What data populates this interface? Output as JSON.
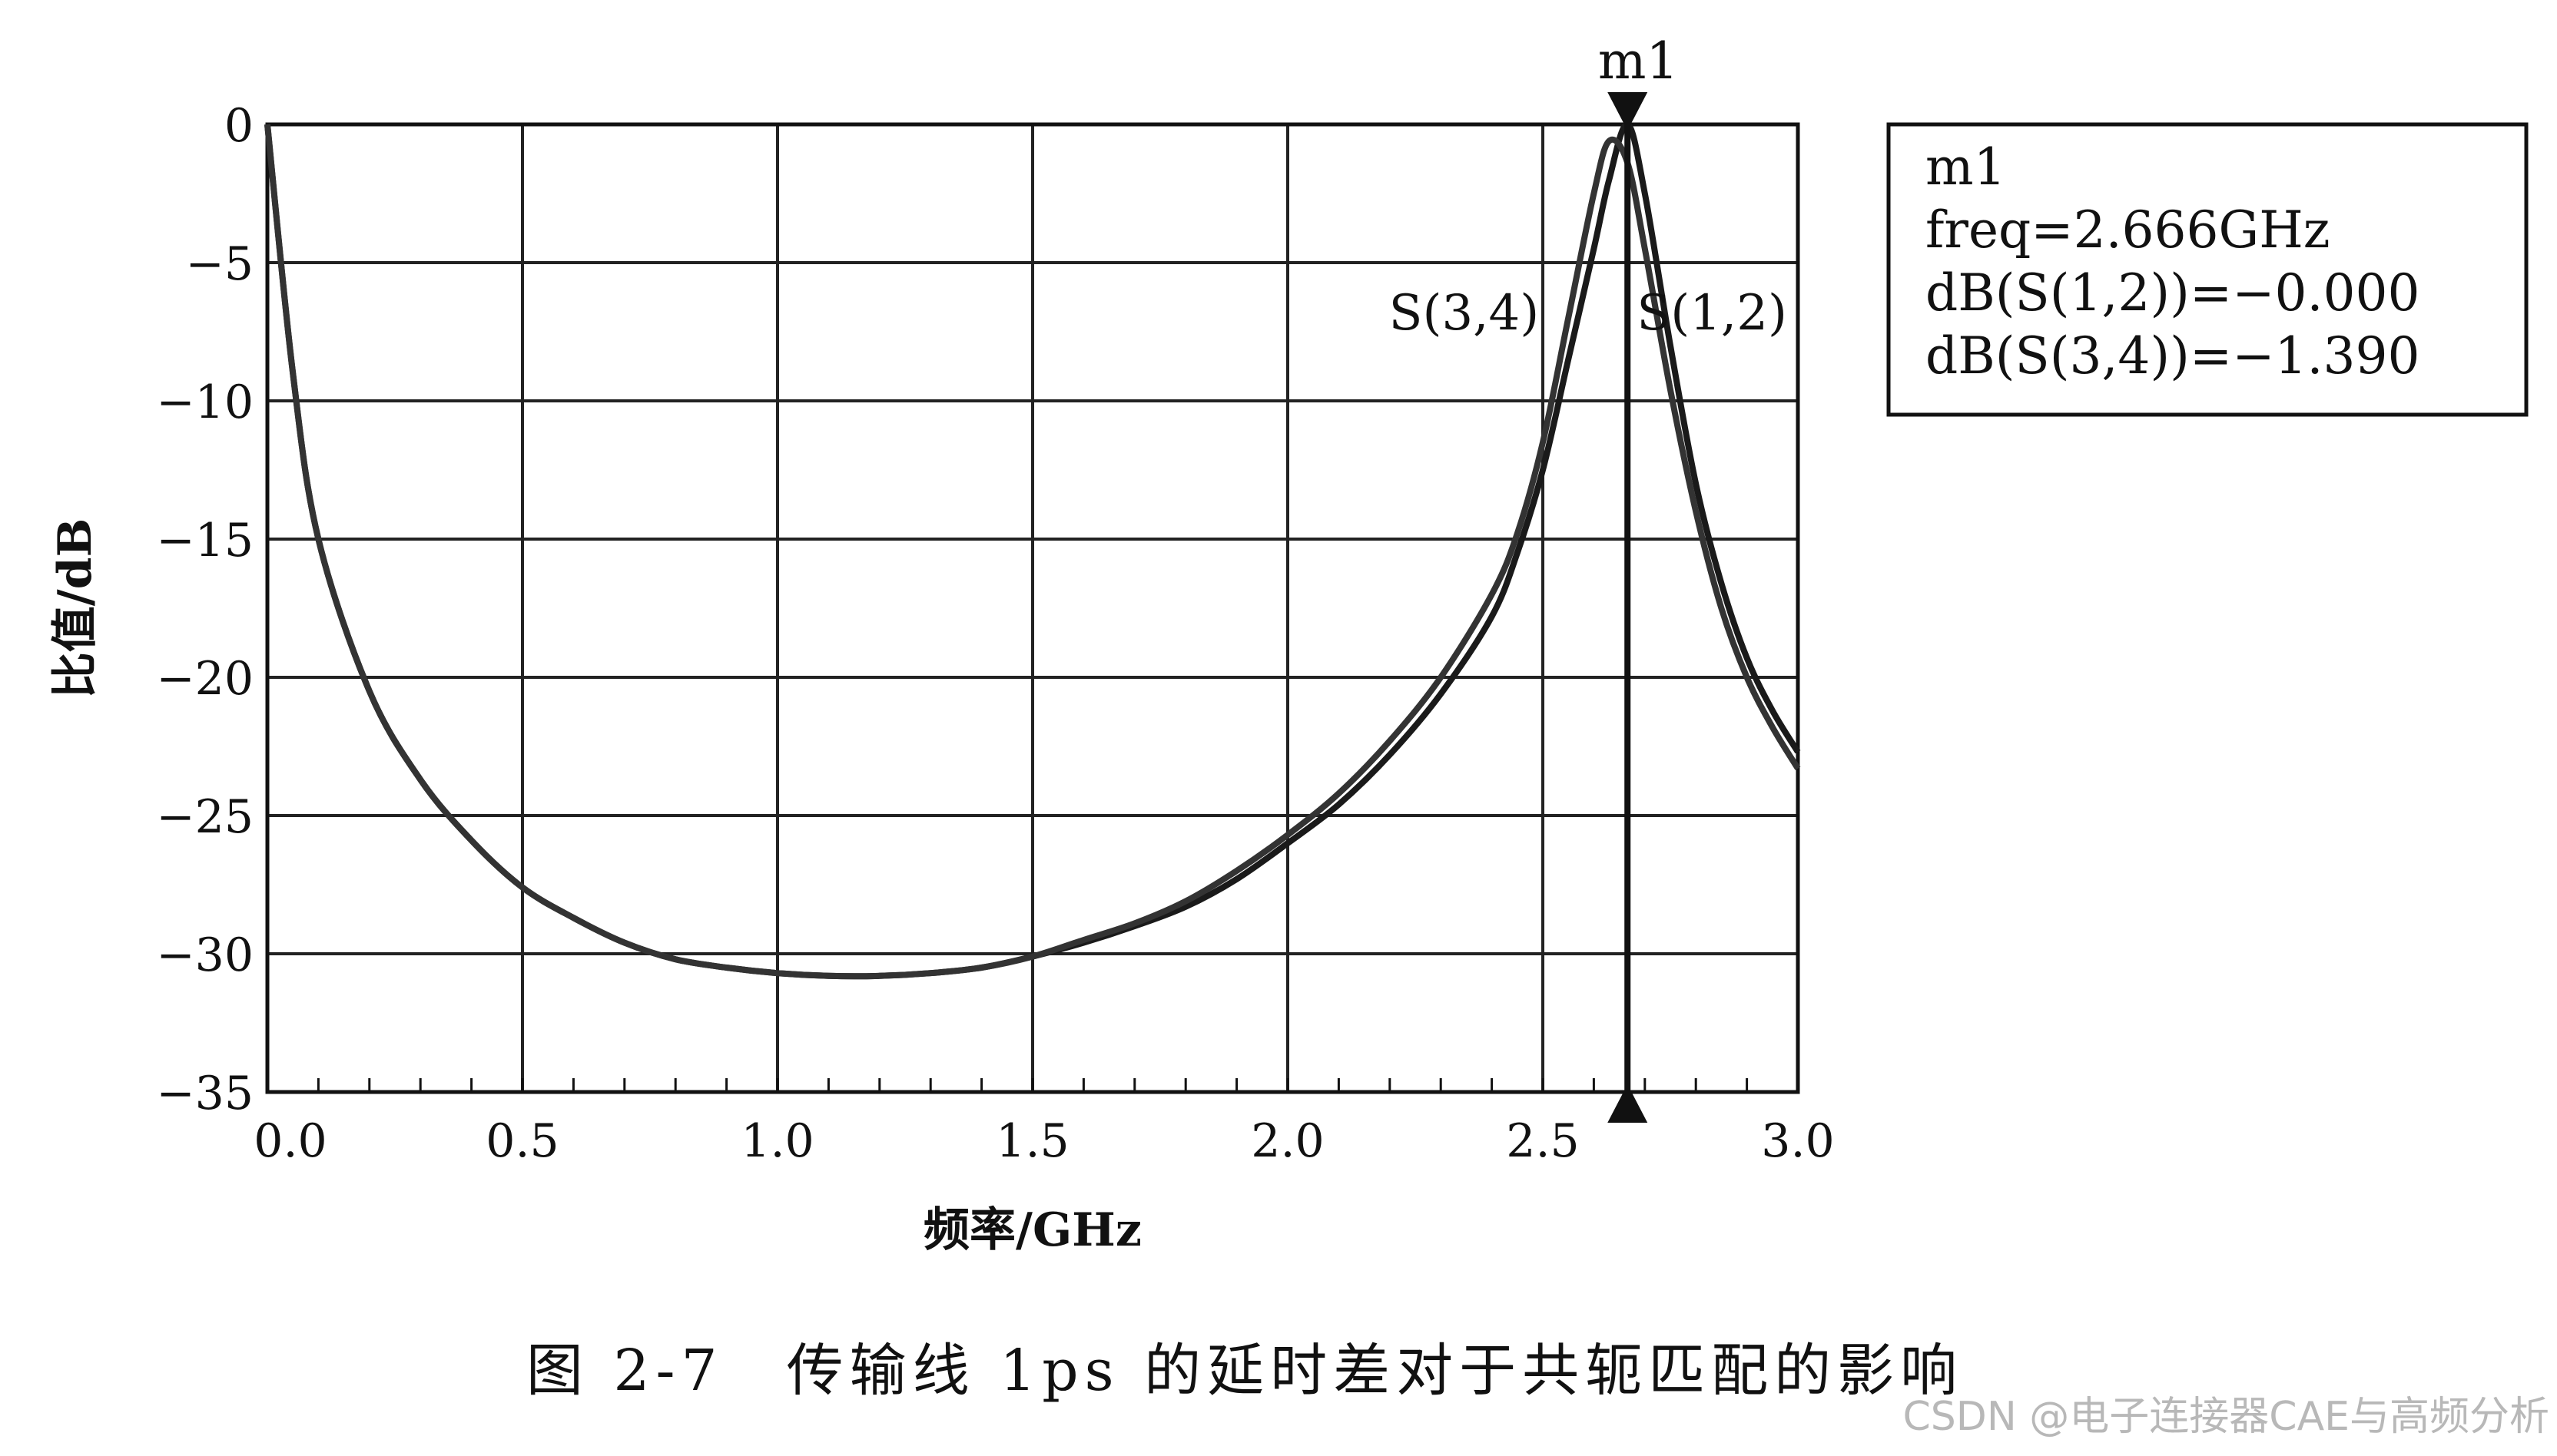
{
  "chart_data": {
    "type": "line",
    "xlabel": "频率/GHz",
    "ylabel": "比值/dB",
    "xlim": [
      0.0,
      3.0
    ],
    "ylim": [
      -35,
      0
    ],
    "xticks": [
      "0.0",
      "0.5",
      "1.0",
      "1.5",
      "2.0",
      "2.5",
      "3.0"
    ],
    "yticks": [
      "0",
      "−5",
      "−10",
      "−15",
      "−20",
      "−25",
      "−30",
      "−35"
    ],
    "grid": true,
    "series": [
      {
        "name": "S(1,2)",
        "x": [
          0.0,
          0.05,
          0.1,
          0.2,
          0.3,
          0.4,
          0.5,
          0.6,
          0.7,
          0.8,
          0.9,
          1.0,
          1.1,
          1.2,
          1.3,
          1.4,
          1.5,
          1.6,
          1.7,
          1.8,
          1.9,
          2.0,
          2.1,
          2.2,
          2.3,
          2.4,
          2.45,
          2.5,
          2.55,
          2.6,
          2.63,
          2.666,
          2.7,
          2.75,
          2.8,
          2.85,
          2.9,
          2.95,
          3.0
        ],
        "y": [
          0,
          -9,
          -15,
          -20.5,
          -23.7,
          -25.9,
          -27.6,
          -28.7,
          -29.6,
          -30.2,
          -30.5,
          -30.7,
          -30.8,
          -30.8,
          -30.7,
          -30.5,
          -30.1,
          -29.6,
          -29.0,
          -28.3,
          -27.3,
          -26.0,
          -24.6,
          -22.8,
          -20.6,
          -17.8,
          -15.5,
          -12.5,
          -8.5,
          -4.5,
          -2.0,
          0,
          -2.5,
          -8.0,
          -13.0,
          -16.6,
          -19.3,
          -21.2,
          -22.7
        ]
      },
      {
        "name": "S(3,4)",
        "x": [
          0.0,
          0.05,
          0.1,
          0.2,
          0.3,
          0.4,
          0.5,
          0.6,
          0.7,
          0.8,
          0.9,
          1.0,
          1.1,
          1.2,
          1.3,
          1.4,
          1.5,
          1.6,
          1.7,
          1.8,
          1.9,
          2.0,
          2.1,
          2.2,
          2.3,
          2.4,
          2.45,
          2.5,
          2.55,
          2.6,
          2.63,
          2.666,
          2.7,
          2.75,
          2.8,
          2.85,
          2.9,
          2.95,
          3.0
        ],
        "y": [
          0,
          -9,
          -15,
          -20.5,
          -23.7,
          -25.9,
          -27.6,
          -28.7,
          -29.6,
          -30.2,
          -30.5,
          -30.7,
          -30.8,
          -30.8,
          -30.7,
          -30.5,
          -30.1,
          -29.5,
          -28.9,
          -28.1,
          -27.0,
          -25.7,
          -24.2,
          -22.3,
          -20.0,
          -17.0,
          -14.8,
          -11.5,
          -7.0,
          -2.5,
          -0.6,
          -1.39,
          -4.5,
          -9.6,
          -14.0,
          -17.5,
          -20.0,
          -21.8,
          -23.3
        ]
      }
    ],
    "marker": {
      "name": "m1",
      "x": 2.666,
      "lines": [
        "m1",
        "freq=2.666GHz",
        "dB(S(1,2))=−0.000",
        "dB(S(3,4))=−1.390"
      ]
    },
    "series_labels": [
      {
        "text": "S(3,4)",
        "x": 2.55,
        "y": -6.8
      },
      {
        "text": "S(1,2)",
        "x": 2.85,
        "y": -6.8
      }
    ]
  },
  "caption": "图 2-7　传输线 1ps 的延时差对于共轭匹配的影响",
  "watermark": "CSDN @电子连接器CAE与高频分析"
}
